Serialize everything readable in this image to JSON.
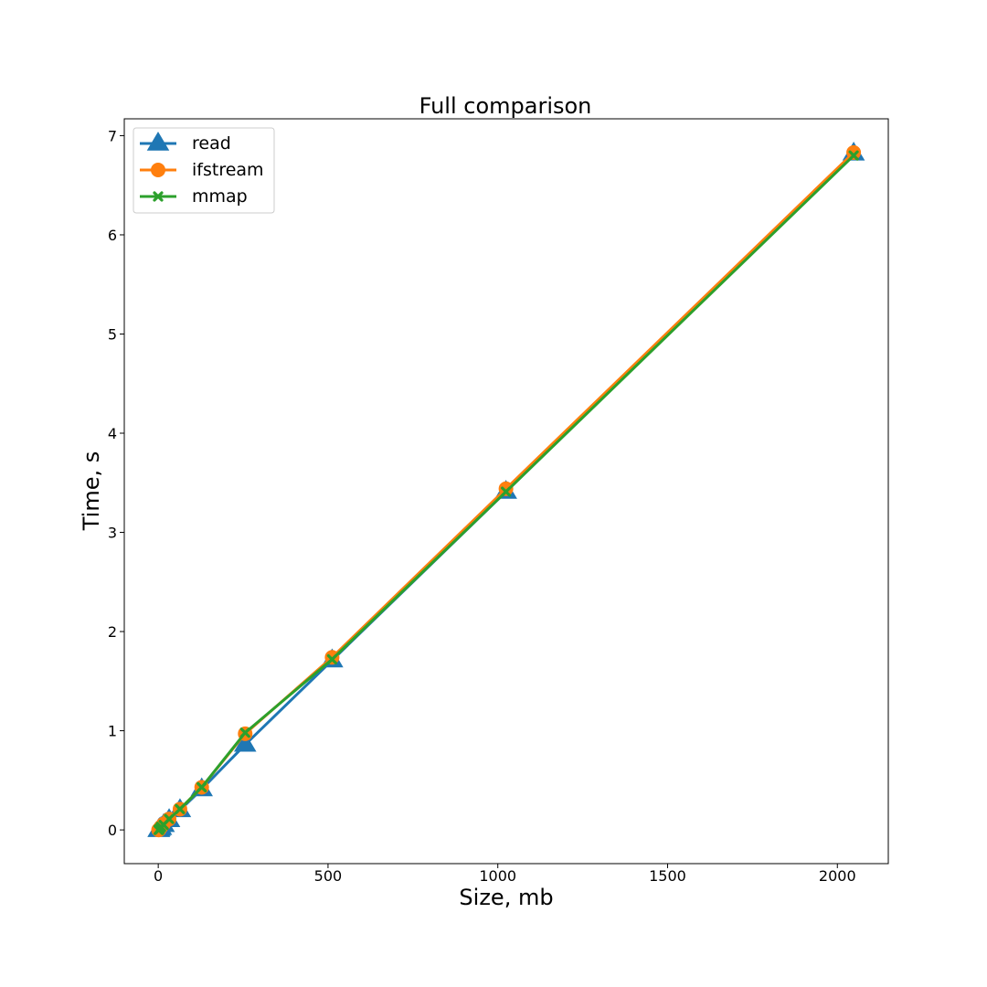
{
  "chart_data": {
    "type": "line",
    "title": "Full comparison",
    "xlabel": "Size, mb",
    "ylabel": "Time, s",
    "xlim": [
      -100,
      2150
    ],
    "ylim": [
      -0.34,
      7.17
    ],
    "xticks": [
      0,
      500,
      1000,
      1500,
      2000
    ],
    "yticks": [
      0,
      1,
      2,
      3,
      4,
      5,
      6,
      7
    ],
    "grid": false,
    "legend": {
      "placement": "upper-left"
    },
    "series": [
      {
        "name": "read",
        "color": "#1f77b4",
        "marker": "triangle",
        "x": [
          1,
          2,
          4,
          8,
          16,
          32,
          64,
          128,
          256,
          512,
          1024,
          2048
        ],
        "y": [
          0.0,
          0.0,
          0.01,
          0.02,
          0.05,
          0.1,
          0.2,
          0.41,
          0.86,
          1.71,
          3.41,
          6.82
        ]
      },
      {
        "name": "ifstream",
        "color": "#ff7f0e",
        "marker": "circle",
        "x": [
          1,
          2,
          4,
          8,
          16,
          32,
          64,
          128,
          256,
          512,
          1024,
          2048
        ],
        "y": [
          0.0,
          0.0,
          0.01,
          0.03,
          0.06,
          0.11,
          0.21,
          0.43,
          0.97,
          1.74,
          3.44,
          6.83
        ]
      },
      {
        "name": "mmap",
        "color": "#2ca02c",
        "marker": "x",
        "x": [
          1,
          2,
          4,
          8,
          16,
          32,
          64,
          128,
          256,
          512,
          1024,
          2048
        ],
        "y": [
          0.0,
          0.0,
          0.01,
          0.03,
          0.05,
          0.11,
          0.21,
          0.43,
          0.98,
          1.72,
          3.41,
          6.8
        ]
      }
    ]
  }
}
